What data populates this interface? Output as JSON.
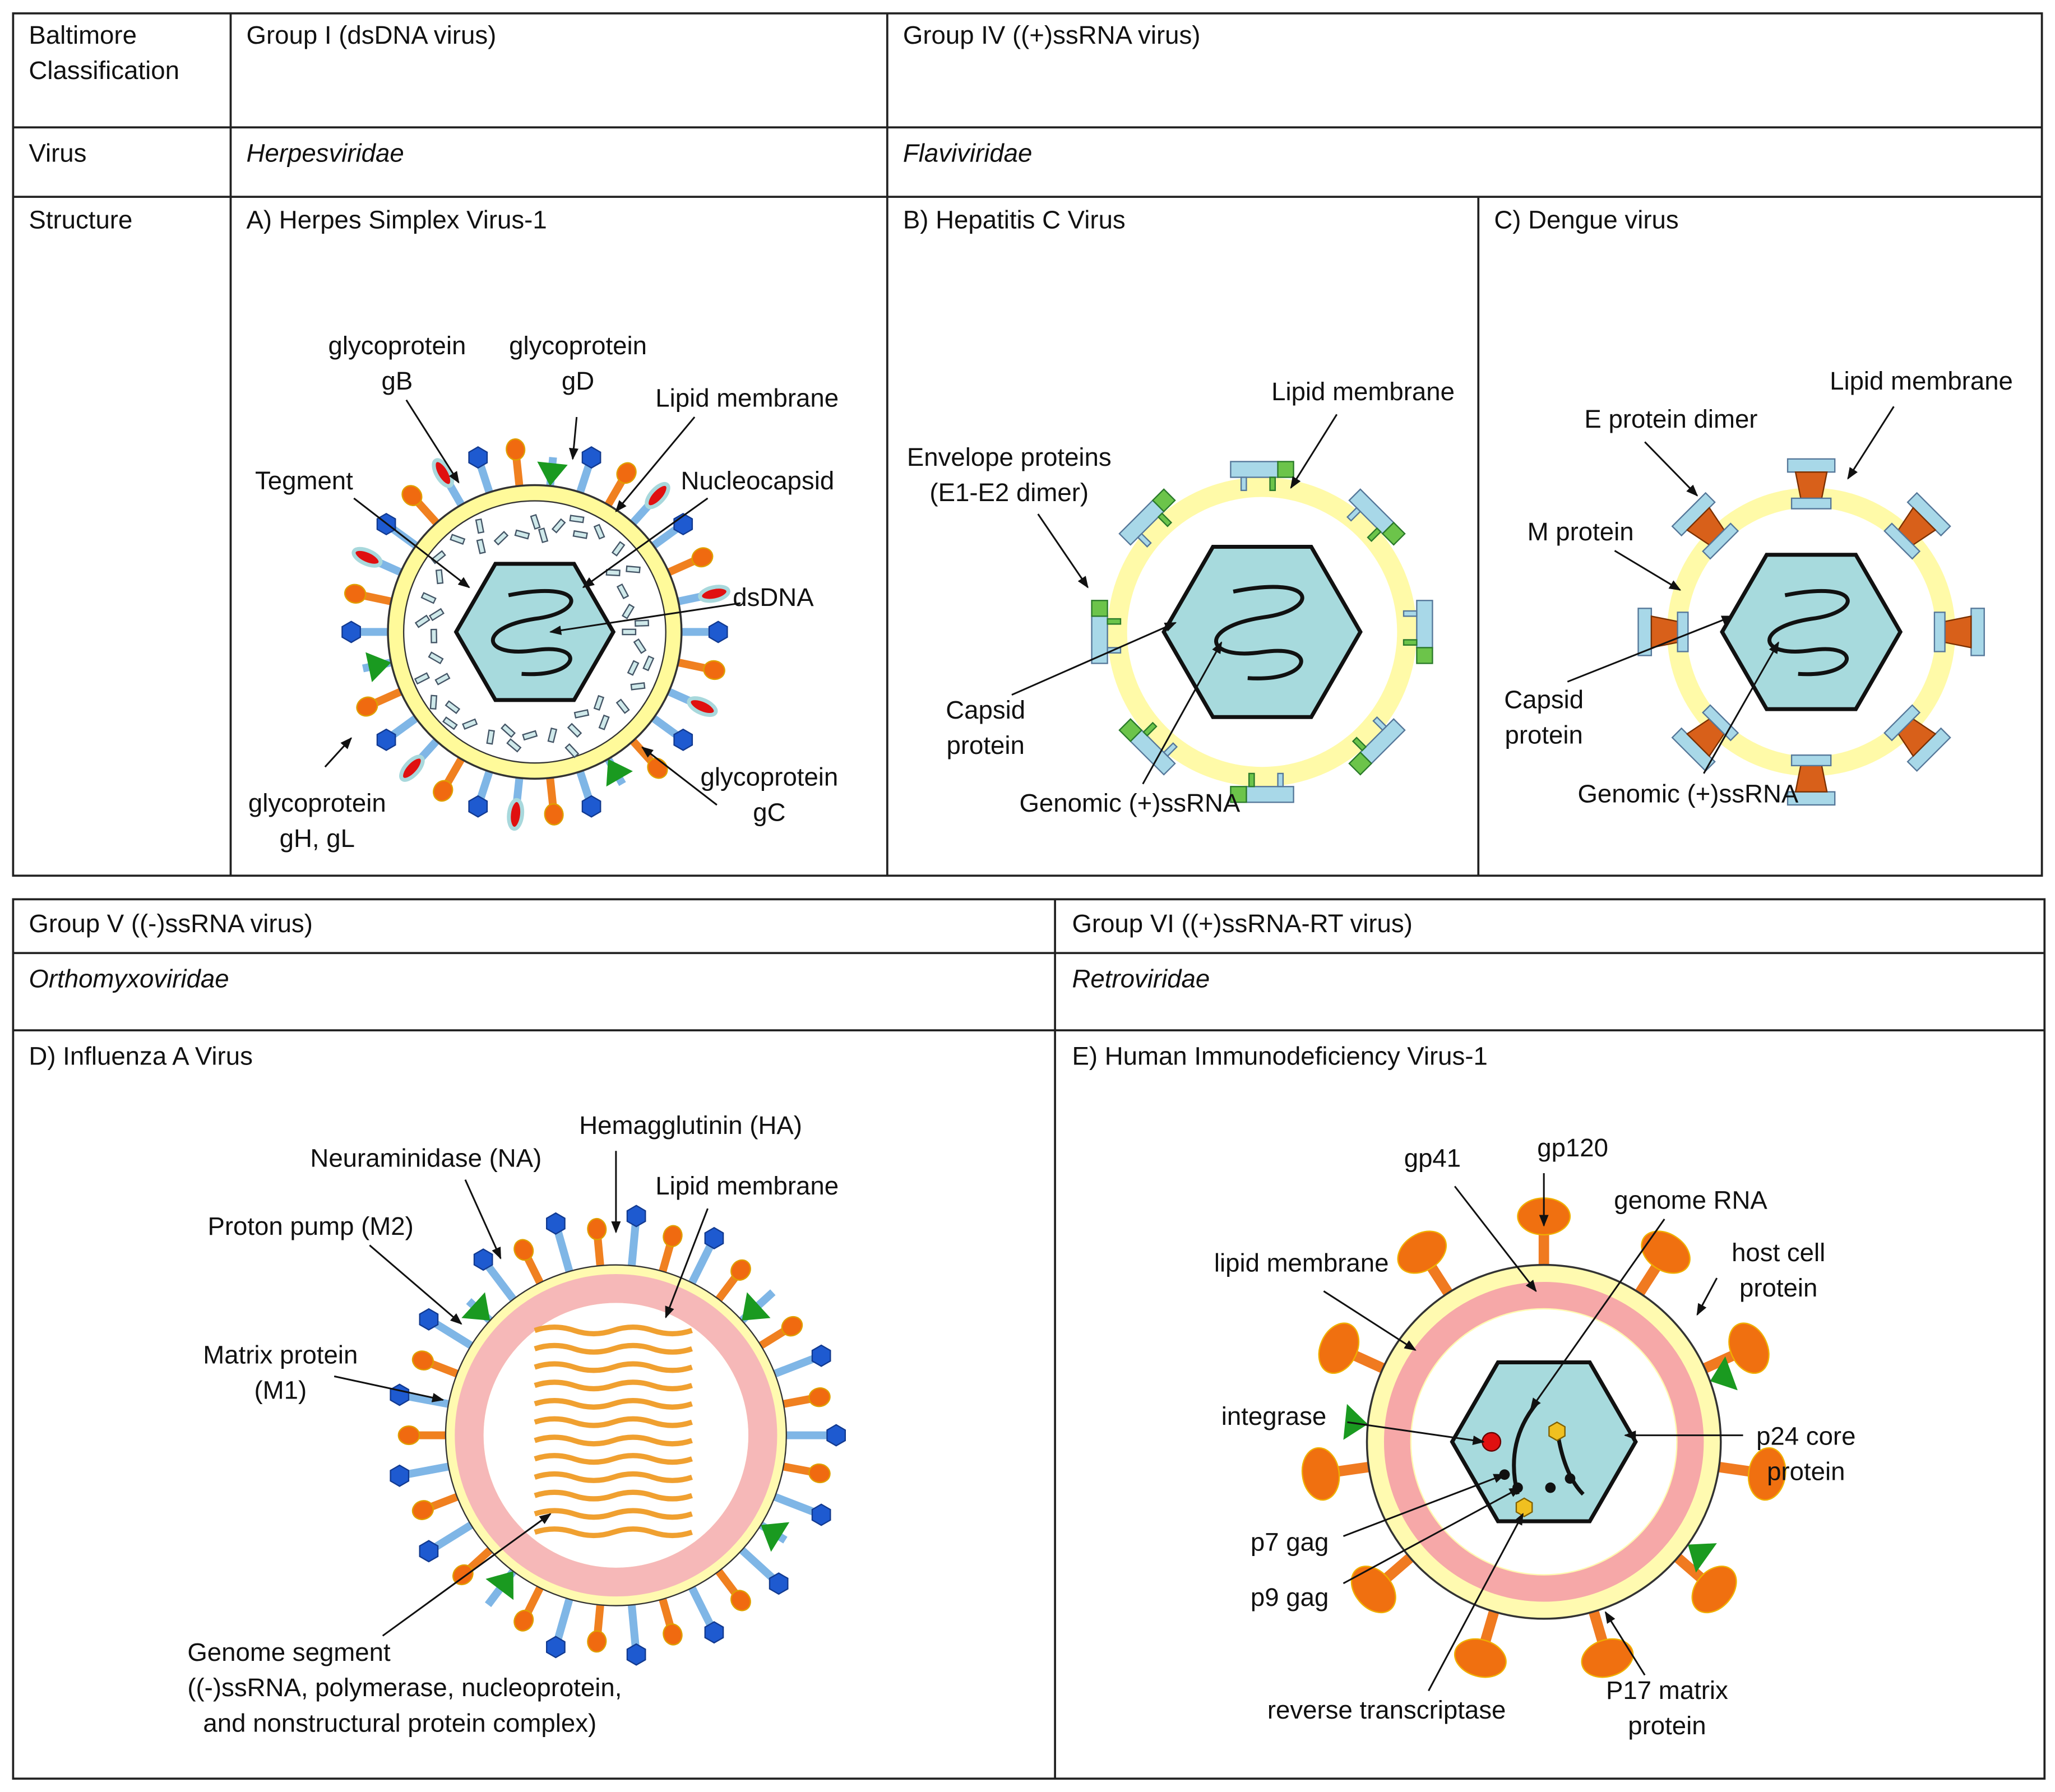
{
  "top": {
    "row_labels": [
      [
        "Baltimore",
        "Classification"
      ],
      [
        "Virus"
      ],
      [
        "Structure"
      ]
    ],
    "groups": [
      "Group I (dsDNA virus)",
      "Group IV ((+)ssRNA virus)"
    ],
    "families": [
      "Herpesviridae",
      "Flaviviridae"
    ],
    "panels": [
      {
        "title": "A) Herpes Simplex Virus-1",
        "labels": [
          [
            "glycoprotein",
            "gB"
          ],
          [
            "glycoprotein",
            "gD"
          ],
          [
            "Lipid membrane"
          ],
          [
            "Tegment"
          ],
          [
            "Nucleocapsid"
          ],
          [
            "dsDNA"
          ],
          [
            "glycoprotein",
            "gH, gL"
          ],
          [
            "glycoprotein",
            "gC"
          ]
        ]
      },
      {
        "title": "B) Hepatitis C Virus",
        "labels": [
          [
            "Lipid membrane"
          ],
          [
            "Envelope proteins",
            "(E1-E2 dimer)"
          ],
          [
            "Capsid",
            "protein"
          ],
          [
            "Genomic (+)ssRNA"
          ]
        ]
      },
      {
        "title": "C) Dengue virus",
        "labels": [
          [
            "Lipid membrane"
          ],
          [
            "E protein dimer"
          ],
          [
            "M protein"
          ],
          [
            "Capsid",
            "protein"
          ],
          [
            "Genomic (+)ssRNA"
          ]
        ]
      }
    ]
  },
  "bottom": {
    "groups": [
      "Group V ((-)ssRNA virus)",
      "Group VI ((+)ssRNA-RT virus)"
    ],
    "families": [
      "Orthomyxoviridae",
      "Retroviridae"
    ],
    "panels": [
      {
        "title": "D) Influenza A Virus",
        "labels": [
          [
            "Hemagglutinin (HA)"
          ],
          [
            "Neuraminidase (NA)"
          ],
          [
            "Lipid membrane"
          ],
          [
            "Proton pump (M2)"
          ],
          [
            "Matrix protein",
            "(M1)"
          ],
          [
            "Genome segment",
            "((-)ssRNA, polymerase, nucleoprotein,",
            "and nonstructural protein complex)"
          ]
        ]
      },
      {
        "title": "E) Human Immunodeficiency Virus-1",
        "labels": [
          [
            "gp120"
          ],
          [
            "gp41"
          ],
          [
            "genome RNA"
          ],
          [
            "lipid membrane"
          ],
          [
            "host cell",
            "protein"
          ],
          [
            "integrase"
          ],
          [
            "p24 core",
            "protein"
          ],
          [
            "p7 gag"
          ],
          [
            "p9 gag"
          ],
          [
            "reverse transcriptase"
          ],
          [
            "P17 matrix",
            "protein"
          ]
        ]
      }
    ]
  }
}
